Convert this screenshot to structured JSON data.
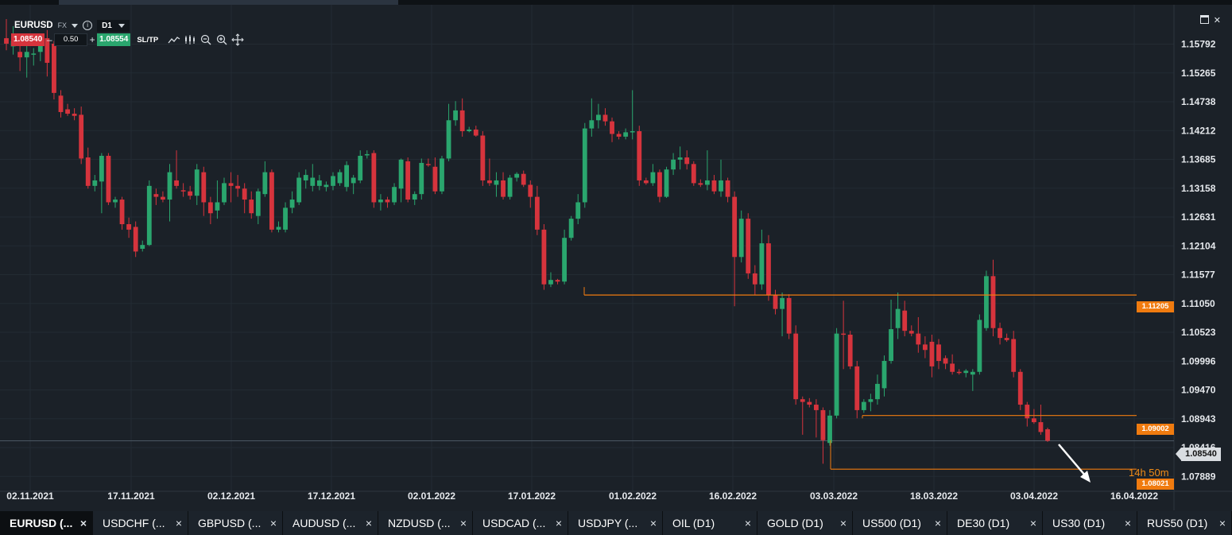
{
  "header": {
    "symbol": "EURUSD",
    "market": "FX",
    "timeframe": "D1",
    "sell_price": "1.08540",
    "buy_price": "1.08554",
    "quantity": "0.50",
    "sltp_label": "SL/TP",
    "minus": "–",
    "plus": "+",
    "info": "i"
  },
  "chart_data": {
    "type": "candlestick",
    "x_tick_labels": [
      "02.11.2021",
      "17.11.2021",
      "02.12.2021",
      "17.12.2021",
      "02.01.2022",
      "17.01.2022",
      "01.02.2022",
      "16.02.2022",
      "03.03.2022",
      "18.03.2022",
      "03.04.2022",
      "16.04.2022"
    ],
    "y_tick_labels": [
      "1.15792",
      "1.15265",
      "1.14738",
      "1.14212",
      "1.13685",
      "1.13158",
      "1.12631",
      "1.12104",
      "1.11577",
      "1.11050",
      "1.10523",
      "1.09996",
      "1.09470",
      "1.08943",
      "1.08416",
      "1.07889"
    ],
    "ylim": [
      1.0775,
      1.1625
    ],
    "grid": true,
    "current_price": "1.08540",
    "price_lines": [
      {
        "label": "1.11205",
        "value": 1.11205
      },
      {
        "label": "1.09002",
        "value": 1.09002
      },
      {
        "label": "1.08021",
        "value": 1.08021
      }
    ],
    "candles": [
      {
        "o": 1.159,
        "h": 1.1625,
        "l": 1.1568,
        "c": 1.158
      },
      {
        "o": 1.1575,
        "h": 1.1612,
        "l": 1.156,
        "c": 1.1585
      },
      {
        "o": 1.1565,
        "h": 1.1582,
        "l": 1.153,
        "c": 1.1555
      },
      {
        "o": 1.1555,
        "h": 1.159,
        "l": 1.1518,
        "c": 1.1565
      },
      {
        "o": 1.156,
        "h": 1.1572,
        "l": 1.154,
        "c": 1.1562
      },
      {
        "o": 1.1565,
        "h": 1.159,
        "l": 1.1548,
        "c": 1.158
      },
      {
        "o": 1.159,
        "h": 1.1605,
        "l": 1.152,
        "c": 1.1545
      },
      {
        "o": 1.158,
        "h": 1.1585,
        "l": 1.1478,
        "c": 1.149
      },
      {
        "o": 1.1485,
        "h": 1.1495,
        "l": 1.1445,
        "c": 1.1455
      },
      {
        "o": 1.146,
        "h": 1.147,
        "l": 1.1448,
        "c": 1.1452
      },
      {
        "o": 1.1452,
        "h": 1.1462,
        "l": 1.144,
        "c": 1.1448
      },
      {
        "o": 1.145,
        "h": 1.1465,
        "l": 1.136,
        "c": 1.137
      },
      {
        "o": 1.1372,
        "h": 1.139,
        "l": 1.1315,
        "c": 1.132
      },
      {
        "o": 1.132,
        "h": 1.134,
        "l": 1.131,
        "c": 1.133
      },
      {
        "o": 1.1328,
        "h": 1.138,
        "l": 1.127,
        "c": 1.1375
      },
      {
        "o": 1.1375,
        "h": 1.138,
        "l": 1.1285,
        "c": 1.129
      },
      {
        "o": 1.129,
        "h": 1.13,
        "l": 1.128,
        "c": 1.1295
      },
      {
        "o": 1.1295,
        "h": 1.13,
        "l": 1.124,
        "c": 1.125
      },
      {
        "o": 1.125,
        "h": 1.1262,
        "l": 1.1225,
        "c": 1.124
      },
      {
        "o": 1.1245,
        "h": 1.1255,
        "l": 1.119,
        "c": 1.12
      },
      {
        "o": 1.1205,
        "h": 1.122,
        "l": 1.12,
        "c": 1.1212
      },
      {
        "o": 1.1212,
        "h": 1.133,
        "l": 1.121,
        "c": 1.132
      },
      {
        "o": 1.1305,
        "h": 1.1315,
        "l": 1.1285,
        "c": 1.13
      },
      {
        "o": 1.13,
        "h": 1.131,
        "l": 1.129,
        "c": 1.1295
      },
      {
        "o": 1.1295,
        "h": 1.136,
        "l": 1.1255,
        "c": 1.1345
      },
      {
        "o": 1.133,
        "h": 1.1385,
        "l": 1.1315,
        "c": 1.132
      },
      {
        "o": 1.1312,
        "h": 1.1325,
        "l": 1.13,
        "c": 1.131
      },
      {
        "o": 1.131,
        "h": 1.132,
        "l": 1.1295,
        "c": 1.1302
      },
      {
        "o": 1.1302,
        "h": 1.136,
        "l": 1.1285,
        "c": 1.135
      },
      {
        "o": 1.1345,
        "h": 1.1355,
        "l": 1.1265,
        "c": 1.129
      },
      {
        "o": 1.129,
        "h": 1.13,
        "l": 1.125,
        "c": 1.127
      },
      {
        "o": 1.1275,
        "h": 1.133,
        "l": 1.126,
        "c": 1.129
      },
      {
        "o": 1.129,
        "h": 1.1335,
        "l": 1.1285,
        "c": 1.1325
      },
      {
        "o": 1.1325,
        "h": 1.1345,
        "l": 1.129,
        "c": 1.132
      },
      {
        "o": 1.132,
        "h": 1.134,
        "l": 1.13,
        "c": 1.1315
      },
      {
        "o": 1.1315,
        "h": 1.1325,
        "l": 1.127,
        "c": 1.1295
      },
      {
        "o": 1.1295,
        "h": 1.131,
        "l": 1.126,
        "c": 1.127
      },
      {
        "o": 1.1265,
        "h": 1.1315,
        "l": 1.125,
        "c": 1.131
      },
      {
        "o": 1.1305,
        "h": 1.1365,
        "l": 1.13,
        "c": 1.1345
      },
      {
        "o": 1.1345,
        "h": 1.135,
        "l": 1.1235,
        "c": 1.124
      },
      {
        "o": 1.124,
        "h": 1.1255,
        "l": 1.1235,
        "c": 1.1245
      },
      {
        "o": 1.124,
        "h": 1.129,
        "l": 1.1235,
        "c": 1.128
      },
      {
        "o": 1.128,
        "h": 1.131,
        "l": 1.127,
        "c": 1.1295
      },
      {
        "o": 1.129,
        "h": 1.1345,
        "l": 1.1285,
        "c": 1.1335
      },
      {
        "o": 1.133,
        "h": 1.135,
        "l": 1.1315,
        "c": 1.134
      },
      {
        "o": 1.132,
        "h": 1.136,
        "l": 1.131,
        "c": 1.1335
      },
      {
        "o": 1.132,
        "h": 1.134,
        "l": 1.1312,
        "c": 1.133
      },
      {
        "o": 1.1318,
        "h": 1.1328,
        "l": 1.131,
        "c": 1.1322
      },
      {
        "o": 1.132,
        "h": 1.1345,
        "l": 1.1312,
        "c": 1.1338
      },
      {
        "o": 1.1325,
        "h": 1.135,
        "l": 1.132,
        "c": 1.1345
      },
      {
        "o": 1.1318,
        "h": 1.1365,
        "l": 1.131,
        "c": 1.1358
      },
      {
        "o": 1.1325,
        "h": 1.134,
        "l": 1.1305,
        "c": 1.1335
      },
      {
        "o": 1.133,
        "h": 1.1385,
        "l": 1.1325,
        "c": 1.1375
      },
      {
        "o": 1.1378,
        "h": 1.1385,
        "l": 1.137,
        "c": 1.1378
      },
      {
        "o": 1.138,
        "h": 1.1385,
        "l": 1.128,
        "c": 1.129
      },
      {
        "o": 1.129,
        "h": 1.1305,
        "l": 1.1275,
        "c": 1.1295
      },
      {
        "o": 1.1295,
        "h": 1.13,
        "l": 1.128,
        "c": 1.129
      },
      {
        "o": 1.129,
        "h": 1.1325,
        "l": 1.1285,
        "c": 1.1318
      },
      {
        "o": 1.1315,
        "h": 1.137,
        "l": 1.129,
        "c": 1.1368
      },
      {
        "o": 1.1365,
        "h": 1.1372,
        "l": 1.129,
        "c": 1.1295
      },
      {
        "o": 1.1295,
        "h": 1.131,
        "l": 1.1285,
        "c": 1.1305
      },
      {
        "o": 1.1305,
        "h": 1.137,
        "l": 1.1295,
        "c": 1.1362
      },
      {
        "o": 1.136,
        "h": 1.137,
        "l": 1.1355,
        "c": 1.1358
      },
      {
        "o": 1.1355,
        "h": 1.1372,
        "l": 1.1305,
        "c": 1.131
      },
      {
        "o": 1.131,
        "h": 1.1375,
        "l": 1.1305,
        "c": 1.137
      },
      {
        "o": 1.137,
        "h": 1.147,
        "l": 1.1365,
        "c": 1.144
      },
      {
        "o": 1.144,
        "h": 1.1475,
        "l": 1.143,
        "c": 1.1458
      },
      {
        "o": 1.1458,
        "h": 1.148,
        "l": 1.141,
        "c": 1.142
      },
      {
        "o": 1.142,
        "h": 1.1428,
        "l": 1.1418,
        "c": 1.1423
      },
      {
        "o": 1.1423,
        "h": 1.143,
        "l": 1.141,
        "c": 1.1412
      },
      {
        "o": 1.1412,
        "h": 1.142,
        "l": 1.132,
        "c": 1.133
      },
      {
        "o": 1.133,
        "h": 1.137,
        "l": 1.132,
        "c": 1.1325
      },
      {
        "o": 1.1322,
        "h": 1.1345,
        "l": 1.13,
        "c": 1.133
      },
      {
        "o": 1.133,
        "h": 1.1345,
        "l": 1.1295,
        "c": 1.13
      },
      {
        "o": 1.13,
        "h": 1.134,
        "l": 1.1295,
        "c": 1.1335
      },
      {
        "o": 1.1335,
        "h": 1.1345,
        "l": 1.1328,
        "c": 1.1342
      },
      {
        "o": 1.1342,
        "h": 1.1348,
        "l": 1.1318,
        "c": 1.1322
      },
      {
        "o": 1.1322,
        "h": 1.133,
        "l": 1.128,
        "c": 1.13
      },
      {
        "o": 1.13,
        "h": 1.132,
        "l": 1.123,
        "c": 1.124
      },
      {
        "o": 1.124,
        "h": 1.125,
        "l": 1.113,
        "c": 1.114
      },
      {
        "o": 1.114,
        "h": 1.1162,
        "l": 1.1135,
        "c": 1.1148
      },
      {
        "o": 1.1148,
        "h": 1.115,
        "l": 1.114,
        "c": 1.1145
      },
      {
        "o": 1.1145,
        "h": 1.124,
        "l": 1.114,
        "c": 1.1225
      },
      {
        "o": 1.1225,
        "h": 1.1265,
        "l": 1.122,
        "c": 1.126
      },
      {
        "o": 1.126,
        "h": 1.1305,
        "l": 1.125,
        "c": 1.129
      },
      {
        "o": 1.129,
        "h": 1.1435,
        "l": 1.128,
        "c": 1.1425
      },
      {
        "o": 1.1425,
        "h": 1.148,
        "l": 1.141,
        "c": 1.144
      },
      {
        "o": 1.144,
        "h": 1.147,
        "l": 1.1425,
        "c": 1.145
      },
      {
        "o": 1.145,
        "h": 1.1462,
        "l": 1.143,
        "c": 1.1438
      },
      {
        "o": 1.1438,
        "h": 1.1445,
        "l": 1.14,
        "c": 1.1415
      },
      {
        "o": 1.1415,
        "h": 1.142,
        "l": 1.1405,
        "c": 1.141
      },
      {
        "o": 1.141,
        "h": 1.1425,
        "l": 1.1405,
        "c": 1.1418
      },
      {
        "o": 1.1418,
        "h": 1.1495,
        "l": 1.1405,
        "c": 1.142
      },
      {
        "o": 1.142,
        "h": 1.143,
        "l": 1.132,
        "c": 1.133
      },
      {
        "o": 1.133,
        "h": 1.1335,
        "l": 1.1322,
        "c": 1.1325
      },
      {
        "o": 1.1325,
        "h": 1.136,
        "l": 1.132,
        "c": 1.1345
      },
      {
        "o": 1.1345,
        "h": 1.135,
        "l": 1.129,
        "c": 1.13
      },
      {
        "o": 1.13,
        "h": 1.1355,
        "l": 1.1298,
        "c": 1.135
      },
      {
        "o": 1.135,
        "h": 1.138,
        "l": 1.134,
        "c": 1.1368
      },
      {
        "o": 1.1368,
        "h": 1.1392,
        "l": 1.135,
        "c": 1.1372
      },
      {
        "o": 1.1372,
        "h": 1.1385,
        "l": 1.135,
        "c": 1.136
      },
      {
        "o": 1.136,
        "h": 1.1365,
        "l": 1.132,
        "c": 1.1325
      },
      {
        "o": 1.1325,
        "h": 1.1332,
        "l": 1.1318,
        "c": 1.1322
      },
      {
        "o": 1.1322,
        "h": 1.1385,
        "l": 1.1312,
        "c": 1.133
      },
      {
        "o": 1.133,
        "h": 1.134,
        "l": 1.1305,
        "c": 1.131
      },
      {
        "o": 1.131,
        "h": 1.1368,
        "l": 1.13,
        "c": 1.133
      },
      {
        "o": 1.133,
        "h": 1.1335,
        "l": 1.129,
        "c": 1.13
      },
      {
        "o": 1.13,
        "h": 1.131,
        "l": 1.11,
        "c": 1.119
      },
      {
        "o": 1.119,
        "h": 1.1275,
        "l": 1.118,
        "c": 1.126
      },
      {
        "o": 1.126,
        "h": 1.127,
        "l": 1.115,
        "c": 1.116
      },
      {
        "o": 1.116,
        "h": 1.1175,
        "l": 1.112,
        "c": 1.114
      },
      {
        "o": 1.114,
        "h": 1.124,
        "l": 1.113,
        "c": 1.1215
      },
      {
        "o": 1.1215,
        "h": 1.123,
        "l": 1.111,
        "c": 1.112
      },
      {
        "o": 1.112,
        "h": 1.113,
        "l": 1.1085,
        "c": 1.1095
      },
      {
        "o": 1.1095,
        "h": 1.1125,
        "l": 1.1045,
        "c": 1.1115
      },
      {
        "o": 1.1115,
        "h": 1.1122,
        "l": 1.104,
        "c": 1.105
      },
      {
        "o": 1.105,
        "h": 1.1065,
        "l": 1.092,
        "c": 1.093
      },
      {
        "o": 1.093,
        "h": 1.0935,
        "l": 1.0865,
        "c": 1.0925
      },
      {
        "o": 1.0925,
        "h": 1.0932,
        "l": 1.0915,
        "c": 1.092
      },
      {
        "o": 1.092,
        "h": 1.093,
        "l": 1.086,
        "c": 1.091
      },
      {
        "o": 1.091,
        "h": 1.0915,
        "l": 1.0812,
        "c": 1.0855
      },
      {
        "o": 1.085,
        "h": 1.091,
        "l": 1.0845,
        "c": 1.09
      },
      {
        "o": 1.09,
        "h": 1.106,
        "l": 1.0895,
        "c": 1.105
      },
      {
        "o": 1.105,
        "h": 1.111,
        "l": 1.0985,
        "c": 1.1048
      },
      {
        "o": 1.1048,
        "h": 1.1055,
        "l": 1.0985,
        "c": 1.099
      },
      {
        "o": 1.099,
        "h": 1.1,
        "l": 1.0895,
        "c": 1.091
      },
      {
        "o": 1.091,
        "h": 1.093,
        "l": 1.0905,
        "c": 1.0925
      },
      {
        "o": 1.0925,
        "h": 1.094,
        "l": 1.0908,
        "c": 1.093
      },
      {
        "o": 1.093,
        "h": 1.0975,
        "l": 1.092,
        "c": 1.0958
      },
      {
        "o": 1.095,
        "h": 1.101,
        "l": 1.0935,
        "c": 1.1
      },
      {
        "o": 1.1,
        "h": 1.1112,
        "l": 1.0995,
        "c": 1.1058
      },
      {
        "o": 1.106,
        "h": 1.1125,
        "l": 1.104,
        "c": 1.1095
      },
      {
        "o": 1.1092,
        "h": 1.111,
        "l": 1.1045,
        "c": 1.1055
      },
      {
        "o": 1.1055,
        "h": 1.1065,
        "l": 1.1045,
        "c": 1.105
      },
      {
        "o": 1.105,
        "h": 1.108,
        "l": 1.1015,
        "c": 1.103
      },
      {
        "o": 1.103,
        "h": 1.1045,
        "l": 1.1005,
        "c": 1.102
      },
      {
        "o": 1.1035,
        "h": 1.1048,
        "l": 1.097,
        "c": 1.099
      },
      {
        "o": 1.103,
        "h": 1.104,
        "l": 1.0985,
        "c": 1.1
      },
      {
        "o": 1.1005,
        "h": 1.101,
        "l": 1.0985,
        "c": 1.0995
      },
      {
        "o": 1.0995,
        "h": 1.1012,
        "l": 1.0975,
        "c": 1.098
      },
      {
        "o": 1.098,
        "h": 1.0985,
        "l": 1.0975,
        "c": 1.0978
      },
      {
        "o": 1.0978,
        "h": 1.0985,
        "l": 1.097,
        "c": 1.0982
      },
      {
        "o": 1.0975,
        "h": 1.0985,
        "l": 1.0945,
        "c": 1.098
      },
      {
        "o": 1.098,
        "h": 1.1085,
        "l": 1.0975,
        "c": 1.1075
      },
      {
        "o": 1.106,
        "h": 1.1165,
        "l": 1.1055,
        "c": 1.1155
      },
      {
        "o": 1.1155,
        "h": 1.1185,
        "l": 1.1045,
        "c": 1.106
      },
      {
        "o": 1.106,
        "h": 1.107,
        "l": 1.103,
        "c": 1.1042
      },
      {
        "o": 1.1042,
        "h": 1.105,
        "l": 1.1035,
        "c": 1.1038
      },
      {
        "o": 1.104,
        "h": 1.1055,
        "l": 1.097,
        "c": 1.098
      },
      {
        "o": 1.098,
        "h": 1.0985,
        "l": 1.091,
        "c": 1.092
      },
      {
        "o": 1.092,
        "h": 1.0925,
        "l": 1.088,
        "c": 1.0895
      },
      {
        "o": 1.0895,
        "h": 1.0912,
        "l": 1.0885,
        "c": 1.0888
      },
      {
        "o": 1.0888,
        "h": 1.092,
        "l": 1.0865,
        "c": 1.087
      },
      {
        "o": 1.0875,
        "h": 1.0878,
        "l": 1.0852,
        "c": 1.0854
      }
    ]
  },
  "countdown": "14h 50m",
  "tabs": [
    {
      "label": "EURUSD (...",
      "close": "×"
    },
    {
      "label": "USDCHF (...",
      "close": "×"
    },
    {
      "label": "GBPUSD (...",
      "close": "×"
    },
    {
      "label": "AUDUSD (...",
      "close": "×"
    },
    {
      "label": "NZDUSD (...",
      "close": "×"
    },
    {
      "label": "USDCAD (...",
      "close": "×"
    },
    {
      "label": "USDJPY (...",
      "close": "×"
    },
    {
      "label": "OIL (D1)",
      "close": "×"
    },
    {
      "label": "GOLD (D1)",
      "close": "×"
    },
    {
      "label": "US500 (D1)",
      "close": "×"
    },
    {
      "label": "DE30 (D1)",
      "close": "×"
    },
    {
      "label": "US30 (D1)",
      "close": "×"
    },
    {
      "label": "RUS50 (D1)",
      "close": "×"
    }
  ],
  "colors": {
    "up": "#2aa66e",
    "down": "#d6343d",
    "line": "#f07b0f",
    "bg": "#1b2128"
  }
}
